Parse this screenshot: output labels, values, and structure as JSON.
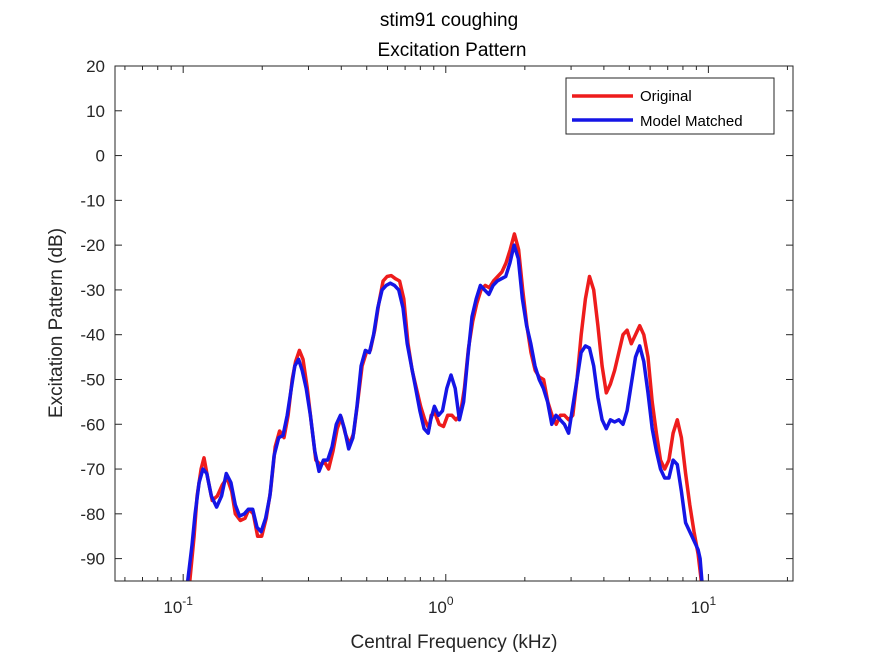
{
  "chart_data": {
    "type": "line",
    "title": "stim91 coughing",
    "subtitle": "Excitation Pattern",
    "xlabel": "Central Frequency (kHz)",
    "ylabel": "Excitation Pattern (dB)",
    "xscale": "log",
    "xlim": [
      0.055,
      21
    ],
    "ylim": [
      -95,
      20
    ],
    "yticks": [
      20,
      10,
      0,
      -10,
      -20,
      -30,
      -40,
      -50,
      -60,
      -70,
      -80,
      -90
    ],
    "xticks": [
      {
        "base": "10",
        "exp": "-1",
        "value": 0.1
      },
      {
        "base": "10",
        "exp": "0",
        "value": 1
      },
      {
        "base": "10",
        "exp": "1",
        "value": 10
      }
    ],
    "grid": false,
    "legend_position": "top-right",
    "series": [
      {
        "name": "Original",
        "color": "#ee1c1c",
        "points": [
          [
            0.106,
            -95
          ],
          [
            0.11,
            -85
          ],
          [
            0.113,
            -76
          ],
          [
            0.117,
            -70
          ],
          [
            0.12,
            -67.5
          ],
          [
            0.124,
            -72
          ],
          [
            0.129,
            -77
          ],
          [
            0.135,
            -76
          ],
          [
            0.141,
            -73.5
          ],
          [
            0.147,
            -72
          ],
          [
            0.153,
            -75
          ],
          [
            0.158,
            -80
          ],
          [
            0.165,
            -81.5
          ],
          [
            0.172,
            -81
          ],
          [
            0.178,
            -79
          ],
          [
            0.185,
            -80
          ],
          [
            0.192,
            -85
          ],
          [
            0.199,
            -85
          ],
          [
            0.207,
            -81
          ],
          [
            0.215,
            -75
          ],
          [
            0.224,
            -65
          ],
          [
            0.233,
            -61.5
          ],
          [
            0.242,
            -63
          ],
          [
            0.251,
            -58
          ],
          [
            0.26,
            -50
          ],
          [
            0.268,
            -46
          ],
          [
            0.277,
            -43.5
          ],
          [
            0.286,
            -45.5
          ],
          [
            0.297,
            -52
          ],
          [
            0.308,
            -60
          ],
          [
            0.32,
            -68
          ],
          [
            0.333,
            -69
          ],
          [
            0.346,
            -68.5
          ],
          [
            0.358,
            -70
          ],
          [
            0.372,
            -66
          ],
          [
            0.386,
            -61
          ],
          [
            0.4,
            -58.5
          ],
          [
            0.414,
            -62
          ],
          [
            0.43,
            -64.5
          ],
          [
            0.446,
            -62
          ],
          [
            0.462,
            -55
          ],
          [
            0.48,
            -47
          ],
          [
            0.498,
            -44
          ],
          [
            0.516,
            -43.5
          ],
          [
            0.536,
            -39
          ],
          [
            0.556,
            -33
          ],
          [
            0.577,
            -28
          ],
          [
            0.598,
            -27
          ],
          [
            0.62,
            -26.8
          ],
          [
            0.643,
            -27.5
          ],
          [
            0.667,
            -28
          ],
          [
            0.692,
            -32
          ],
          [
            0.718,
            -42
          ],
          [
            0.745,
            -48
          ],
          [
            0.773,
            -52
          ],
          [
            0.802,
            -56
          ],
          [
            0.832,
            -59
          ],
          [
            0.863,
            -61
          ],
          [
            0.88,
            -58
          ],
          [
            0.91,
            -57.5
          ],
          [
            0.944,
            -60
          ],
          [
            0.98,
            -60.5
          ],
          [
            1.017,
            -58
          ],
          [
            1.055,
            -58
          ],
          [
            1.094,
            -59
          ],
          [
            1.135,
            -58
          ],
          [
            1.177,
            -52
          ],
          [
            1.22,
            -43
          ],
          [
            1.266,
            -37
          ],
          [
            1.313,
            -33
          ],
          [
            1.362,
            -30
          ],
          [
            1.413,
            -29
          ],
          [
            1.465,
            -29.5
          ],
          [
            1.519,
            -28
          ],
          [
            1.576,
            -27
          ],
          [
            1.635,
            -26
          ],
          [
            1.696,
            -24
          ],
          [
            1.759,
            -21
          ],
          [
            1.825,
            -17.5
          ],
          [
            1.893,
            -21
          ],
          [
            1.963,
            -30
          ],
          [
            2.036,
            -38
          ],
          [
            2.112,
            -44
          ],
          [
            2.191,
            -48
          ],
          [
            2.273,
            -49.5
          ],
          [
            2.358,
            -50
          ],
          [
            2.446,
            -55
          ],
          [
            2.537,
            -58
          ],
          [
            2.632,
            -60
          ],
          [
            2.73,
            -58
          ],
          [
            2.832,
            -58
          ],
          [
            2.937,
            -59
          ],
          [
            3.047,
            -58
          ],
          [
            3.16,
            -50
          ],
          [
            3.278,
            -40
          ],
          [
            3.4,
            -32
          ],
          [
            3.527,
            -27
          ],
          [
            3.659,
            -30
          ],
          [
            3.795,
            -38
          ],
          [
            3.937,
            -47
          ],
          [
            4.084,
            -53
          ],
          [
            4.236,
            -51
          ],
          [
            4.394,
            -48
          ],
          [
            4.558,
            -44
          ],
          [
            4.728,
            -40
          ],
          [
            4.904,
            -39
          ],
          [
            5.087,
            -42
          ],
          [
            5.277,
            -40
          ],
          [
            5.474,
            -38
          ],
          [
            5.678,
            -40
          ],
          [
            5.89,
            -45
          ],
          [
            6.11,
            -55
          ],
          [
            6.338,
            -62
          ],
          [
            6.574,
            -68
          ],
          [
            6.819,
            -70
          ],
          [
            7.074,
            -68
          ],
          [
            7.338,
            -62
          ],
          [
            7.612,
            -59
          ],
          [
            7.895,
            -63
          ],
          [
            8.19,
            -71
          ],
          [
            8.495,
            -78
          ],
          [
            8.812,
            -84
          ],
          [
            9.14,
            -89
          ],
          [
            9.4,
            -95
          ]
        ]
      },
      {
        "name": "Model Matched",
        "color": "#1515e6",
        "points": [
          [
            0.104,
            -95
          ],
          [
            0.108,
            -87
          ],
          [
            0.111,
            -80
          ],
          [
            0.115,
            -73
          ],
          [
            0.119,
            -70
          ],
          [
            0.123,
            -71
          ],
          [
            0.128,
            -76
          ],
          [
            0.134,
            -78.5
          ],
          [
            0.14,
            -76
          ],
          [
            0.146,
            -71
          ],
          [
            0.152,
            -73
          ],
          [
            0.158,
            -78
          ],
          [
            0.164,
            -80.5
          ],
          [
            0.171,
            -80
          ],
          [
            0.177,
            -79
          ],
          [
            0.184,
            -79
          ],
          [
            0.191,
            -83
          ],
          [
            0.198,
            -84
          ],
          [
            0.206,
            -81
          ],
          [
            0.214,
            -76
          ],
          [
            0.222,
            -67
          ],
          [
            0.231,
            -63
          ],
          [
            0.24,
            -62.5
          ],
          [
            0.249,
            -58
          ],
          [
            0.258,
            -52
          ],
          [
            0.266,
            -47
          ],
          [
            0.275,
            -45.5
          ],
          [
            0.284,
            -48
          ],
          [
            0.294,
            -52
          ],
          [
            0.305,
            -58
          ],
          [
            0.317,
            -66
          ],
          [
            0.329,
            -70.5
          ],
          [
            0.342,
            -68
          ],
          [
            0.355,
            -68
          ],
          [
            0.369,
            -65
          ],
          [
            0.383,
            -60
          ],
          [
            0.397,
            -58
          ],
          [
            0.411,
            -61
          ],
          [
            0.427,
            -65.5
          ],
          [
            0.443,
            -63
          ],
          [
            0.459,
            -56
          ],
          [
            0.476,
            -47
          ],
          [
            0.494,
            -43.5
          ],
          [
            0.512,
            -44
          ],
          [
            0.531,
            -40
          ],
          [
            0.551,
            -34
          ],
          [
            0.572,
            -30
          ],
          [
            0.593,
            -29
          ],
          [
            0.615,
            -28.5
          ],
          [
            0.638,
            -29
          ],
          [
            0.662,
            -30
          ],
          [
            0.687,
            -34
          ],
          [
            0.713,
            -42
          ],
          [
            0.74,
            -47
          ],
          [
            0.768,
            -52
          ],
          [
            0.797,
            -57
          ],
          [
            0.827,
            -61
          ],
          [
            0.857,
            -62
          ],
          [
            0.876,
            -59
          ],
          [
            0.905,
            -56
          ],
          [
            0.938,
            -58
          ],
          [
            0.972,
            -57
          ],
          [
            1.009,
            -52
          ],
          [
            1.047,
            -49
          ],
          [
            1.086,
            -52
          ],
          [
            1.127,
            -59
          ],
          [
            1.169,
            -55
          ],
          [
            1.213,
            -45
          ],
          [
            1.259,
            -36
          ],
          [
            1.306,
            -32
          ],
          [
            1.355,
            -29
          ],
          [
            1.406,
            -30
          ],
          [
            1.459,
            -31
          ],
          [
            1.514,
            -29
          ],
          [
            1.571,
            -28
          ],
          [
            1.63,
            -27.5
          ],
          [
            1.691,
            -27
          ],
          [
            1.754,
            -24
          ],
          [
            1.82,
            -20
          ],
          [
            1.888,
            -23
          ],
          [
            1.958,
            -32
          ],
          [
            2.032,
            -38
          ],
          [
            2.108,
            -42
          ],
          [
            2.187,
            -47
          ],
          [
            2.269,
            -50
          ],
          [
            2.354,
            -52
          ],
          [
            2.442,
            -55
          ],
          [
            2.534,
            -60
          ],
          [
            2.629,
            -58
          ],
          [
            2.727,
            -59
          ],
          [
            2.829,
            -60
          ],
          [
            2.935,
            -62
          ],
          [
            3.045,
            -56
          ],
          [
            3.159,
            -50
          ],
          [
            3.277,
            -44
          ],
          [
            3.4,
            -42.5
          ],
          [
            3.527,
            -43
          ],
          [
            3.659,
            -47
          ],
          [
            3.795,
            -54
          ],
          [
            3.937,
            -59
          ],
          [
            4.084,
            -61
          ],
          [
            4.236,
            -59
          ],
          [
            4.394,
            -59.5
          ],
          [
            4.558,
            -59
          ],
          [
            4.728,
            -60
          ],
          [
            4.904,
            -57
          ],
          [
            5.087,
            -51
          ],
          [
            5.277,
            -45
          ],
          [
            5.474,
            -42.5
          ],
          [
            5.678,
            -46
          ],
          [
            5.89,
            -53
          ],
          [
            6.11,
            -61
          ],
          [
            6.338,
            -66
          ],
          [
            6.574,
            -70
          ],
          [
            6.819,
            -72
          ],
          [
            7.074,
            -72
          ],
          [
            7.338,
            -68
          ],
          [
            7.612,
            -69
          ],
          [
            7.895,
            -75
          ],
          [
            8.19,
            -82
          ],
          [
            8.495,
            -84
          ],
          [
            8.812,
            -86
          ],
          [
            9.14,
            -88
          ],
          [
            9.3,
            -90
          ],
          [
            9.45,
            -95
          ]
        ]
      }
    ]
  }
}
